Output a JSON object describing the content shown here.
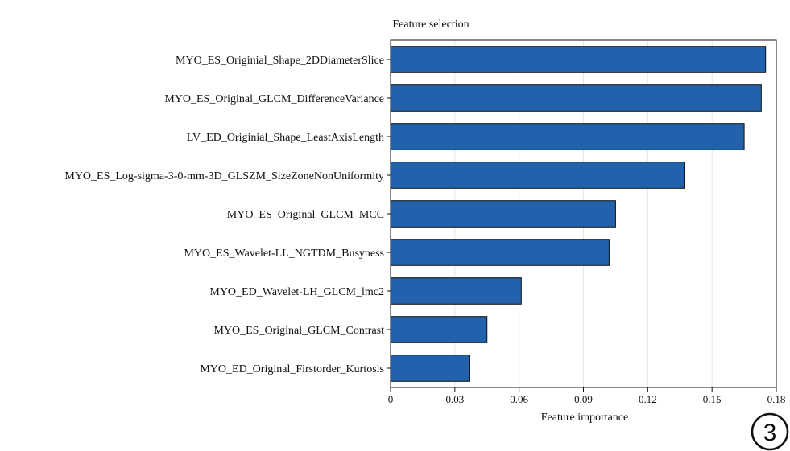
{
  "chart_data": {
    "type": "bar",
    "orientation": "horizontal",
    "title": "Feature selection",
    "xlabel": "Feature importance",
    "ylabel": "",
    "xlim": [
      0,
      0.18
    ],
    "xticks": [
      0,
      0.03,
      0.06,
      0.09,
      0.12,
      0.15,
      0.18
    ],
    "xtick_labels": [
      "0",
      "0.03",
      "0.06",
      "0.09",
      "0.12",
      "0.15",
      "0.18"
    ],
    "grid": "vertical",
    "categories": [
      "MYO_ES_Originial_Shape_2DDiameterSlice",
      "MYO_ES_Original_GLCM_DifferenceVariance",
      "LV_ED_Originial_Shape_LeastAxisLength",
      "MYO_ES_Log-sigma-3-0-mm-3D_GLSZM_SizeZoneNonUniformity",
      "MYO_ES_Original_GLCM_MCC",
      "MYO_ES_Wavelet-LL_NGTDM_Busyness",
      "MYO_ED_Wavelet-LH_GLCM_lmc2",
      "MYO_ES_Original_GLCM_Contrast",
      "MYO_ED_Original_Firstorder_Kurtosis"
    ],
    "values": [
      0.175,
      0.173,
      0.165,
      0.137,
      0.105,
      0.102,
      0.061,
      0.045,
      0.037
    ],
    "bar_color": "#2262ad",
    "edge_color": "#111111"
  },
  "badge": {
    "label": "3"
  }
}
